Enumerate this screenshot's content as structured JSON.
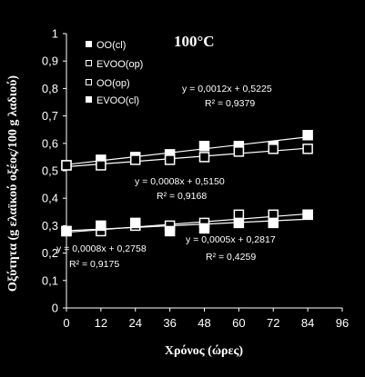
{
  "chart_data": {
    "type": "scatter",
    "title": "100°C",
    "xlabel": "Χρόνος (ώρες)",
    "ylabel": "Οξύτητα (g ελαϊκού οξέος/100 g λαδιού)",
    "xlim": [
      0,
      96
    ],
    "ylim": [
      0,
      1
    ],
    "xticks": [
      "0",
      "12",
      "24",
      "36",
      "48",
      "60",
      "72",
      "84",
      "96"
    ],
    "yticks": [
      "0",
      "0,1",
      "0,2",
      "0,3",
      "0,4",
      "0,5",
      "0,6",
      "0,7",
      "0,8",
      "0,9",
      "1"
    ],
    "grid": false,
    "legend_position": "top-left",
    "series": [
      {
        "name": "OO(cl)",
        "marker": "filled-square",
        "x": [
          0,
          12,
          24,
          36,
          48,
          60,
          72,
          84
        ],
        "y": [
          0.52,
          0.54,
          0.55,
          0.56,
          0.59,
          0.59,
          0.59,
          0.63
        ],
        "fit": {
          "slope": 0.0012,
          "intercept": 0.5225
        }
      },
      {
        "name": "EVOO(op)",
        "marker": "open-square",
        "x": [
          0,
          12,
          24,
          36,
          48,
          60,
          72,
          84
        ],
        "y": [
          0.52,
          0.52,
          0.54,
          0.54,
          0.55,
          0.57,
          0.58,
          0.58
        ],
        "fit": {
          "slope": 0.0008,
          "intercept": 0.515
        }
      },
      {
        "name": "OO(op)",
        "marker": "open-square",
        "x": [
          0,
          12,
          24,
          36,
          48,
          60,
          72,
          84
        ],
        "y": [
          0.28,
          0.28,
          0.3,
          0.3,
          0.31,
          0.34,
          0.34,
          0.34
        ],
        "fit": {
          "slope": 0.0008,
          "intercept": 0.2758
        }
      },
      {
        "name": "EVOO(cl)",
        "marker": "filled-square",
        "x": [
          0,
          12,
          24,
          36,
          48,
          60,
          72,
          84
        ],
        "y": [
          0.28,
          0.3,
          0.31,
          0.28,
          0.29,
          0.31,
          0.31,
          0.34
        ],
        "fit": {
          "slope": 0.0005,
          "intercept": 0.2817
        }
      }
    ],
    "annotations": [
      {
        "eq": "y = 0,0012x  + 0,5225",
        "r2": "R² = 0,9379"
      },
      {
        "eq": "y = 0,0008x  + 0,5150",
        "r2": "R² = 0,9168"
      },
      {
        "eq": "y = 0,0008x  + 0,2758",
        "r2": "R² = 0,9175"
      },
      {
        "eq": "y = 0,0005x  + 0,2817",
        "r2": "R² = 0,4259"
      }
    ]
  }
}
